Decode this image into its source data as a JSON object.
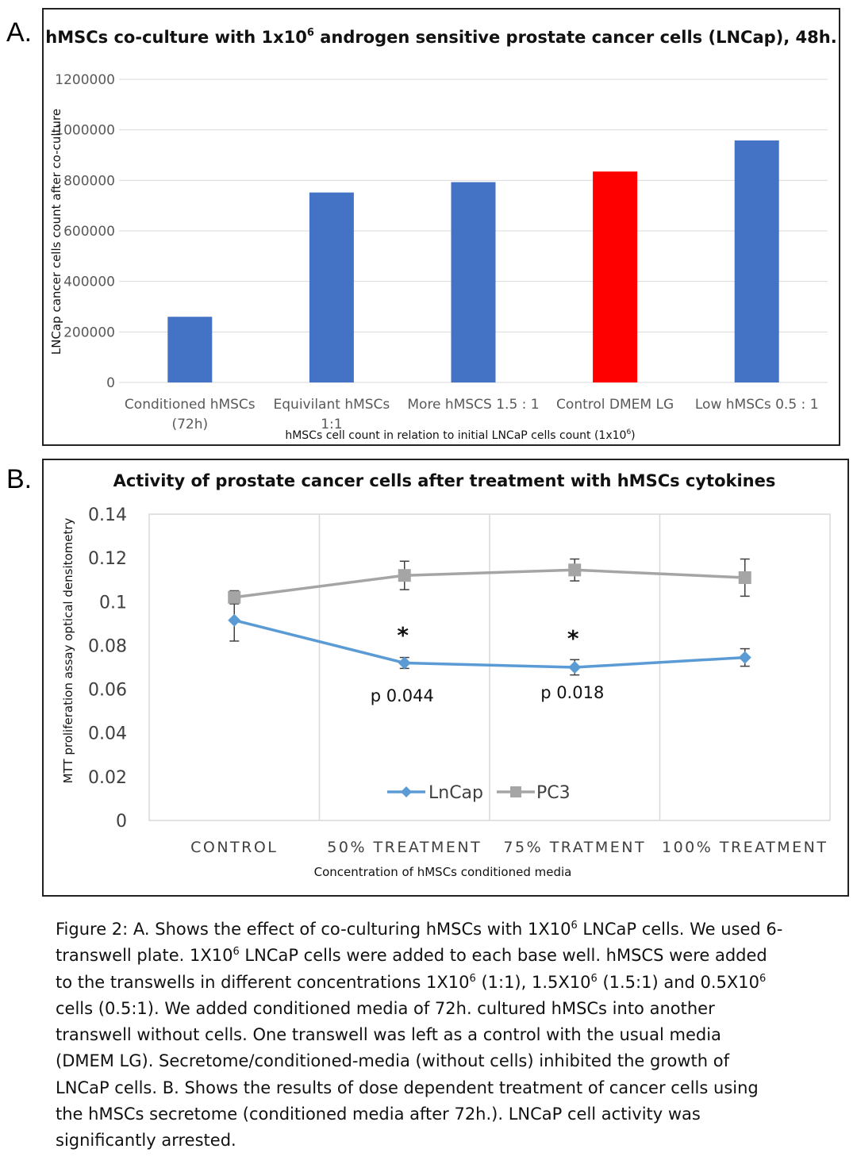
{
  "panel_a": {
    "letter": "A.",
    "chart_data": {
      "type": "bar",
      "title_main": "hMSCs co-culture with 1x10",
      "title_sup": "6",
      "title_rest": " androgen sensitive prostate cancer cells (LNCap), 48h.",
      "ylabel": "LNCap cancer cells count after co-culture",
      "xlabel_main": "hMSCs cell count in relation to initial LNCaP cells count (1x10",
      "xlabel_sup": "6",
      "xlabel_end": ")",
      "categories": [
        [
          "Conditioned hMSCs",
          "(72h)"
        ],
        [
          "Equivilant hMSCs",
          "1:1"
        ],
        [
          "More hMSCS 1.5 : 1"
        ],
        [
          "Control DMEM LG"
        ],
        [
          "Low hMSCs 0.5 : 1"
        ]
      ],
      "values": [
        260000,
        752000,
        793000,
        835000,
        958000
      ],
      "colors": [
        "#4472C4",
        "#4472C4",
        "#4472C4",
        "#FF0000",
        "#4472C4"
      ],
      "ylim": [
        0,
        1200000
      ],
      "yticks": [
        "0",
        "200000",
        "400000",
        "600000",
        "800000",
        "1000000",
        "1200000"
      ],
      "grid": true
    }
  },
  "panel_b": {
    "letter": "B.",
    "chart_data": {
      "type": "line",
      "title": "Activity of prostate cancer cells after treatment with hMSCs cytokines",
      "ylabel": "MTT proliferation assay optical densitometry",
      "xlabel": "Concentration of hMSCs conditioned media",
      "categories": [
        "CONTROL",
        "50% TREATMENT",
        "75% TRATMENT",
        "100% TREATMENT"
      ],
      "ylim": [
        0,
        0.14
      ],
      "yticks": [
        "0",
        "0.02",
        "0.04",
        "0.06",
        "0.08",
        "0.1",
        "0.12",
        "0.14"
      ],
      "series": [
        {
          "name": "LnCap",
          "color": "#5B9BD5",
          "marker": "diamond",
          "values": [
            0.0915,
            0.072,
            0.07,
            0.0745
          ],
          "errors": [
            0.0095,
            0.0025,
            0.0035,
            0.004
          ]
        },
        {
          "name": "PC3",
          "color": "#A5A5A5",
          "marker": "square",
          "values": [
            0.102,
            0.112,
            0.1145,
            0.111
          ],
          "errors": [
            0.003,
            0.0065,
            0.005,
            0.0085
          ]
        }
      ],
      "annotations": [
        {
          "text": "*",
          "category": 1
        },
        {
          "text": "*",
          "category": 2
        },
        {
          "text": "p 0.044",
          "category": 1
        },
        {
          "text": "p 0.018",
          "category": 2
        }
      ],
      "legend": "bottom-center",
      "grid": "vertical"
    }
  },
  "caption": {
    "lines": [
      [
        "Figure 2: A. Shows the effect of co-culturing hMSCs with 1X10",
        "6",
        " LNCaP cells. We used 6-"
      ],
      [
        "transwell plate. 1X10",
        "6",
        " LNCaP cells were added to each base well. hMSCS were added"
      ],
      [
        "to the transwells in different concentrations 1X10",
        "6",
        " (1:1), 1.5X10",
        "6",
        " (1.5:1) and 0.5X10",
        "6"
      ],
      [
        "cells (0.5:1). We added conditioned media of 72h. cultured hMSCs into another"
      ],
      [
        "transwell without cells. One transwell was left as a control with the usual media"
      ],
      [
        "(DMEM LG). Secretome/conditioned-media (without cells) inhibited the growth of"
      ],
      [
        "LNCaP cells. B. Shows the results of dose dependent treatment of cancer cells using"
      ],
      [
        "the hMSCs secretome (conditioned media after 72h.). LNCaP cell activity was"
      ],
      [
        "significantly arrested."
      ]
    ]
  }
}
